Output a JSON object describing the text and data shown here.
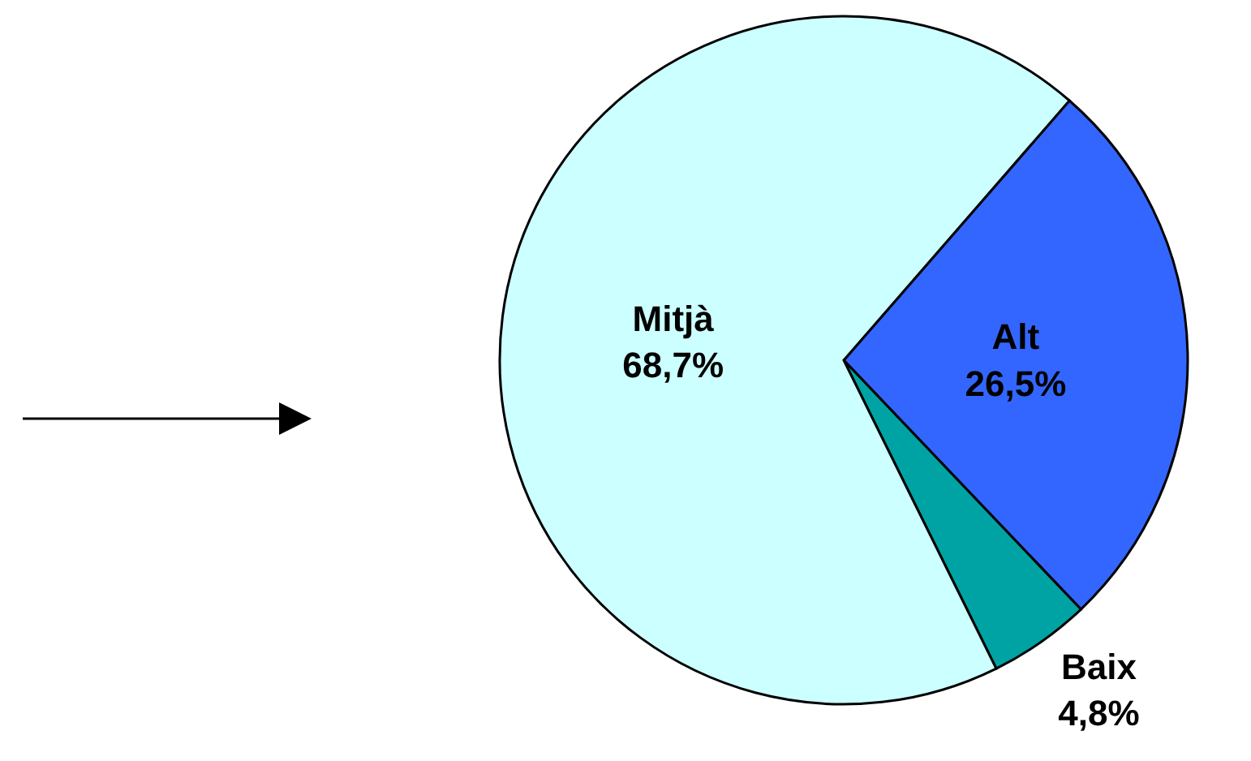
{
  "chart_data": {
    "type": "pie",
    "categories": [
      "Alt",
      "Baix",
      "Mitjà"
    ],
    "values": [
      26.5,
      4.8,
      68.7
    ],
    "colors": [
      "#3366ff",
      "#00a3a3",
      "#ccffff"
    ],
    "value_labels": [
      "26,5%",
      "4,8%",
      "68,7%"
    ]
  }
}
